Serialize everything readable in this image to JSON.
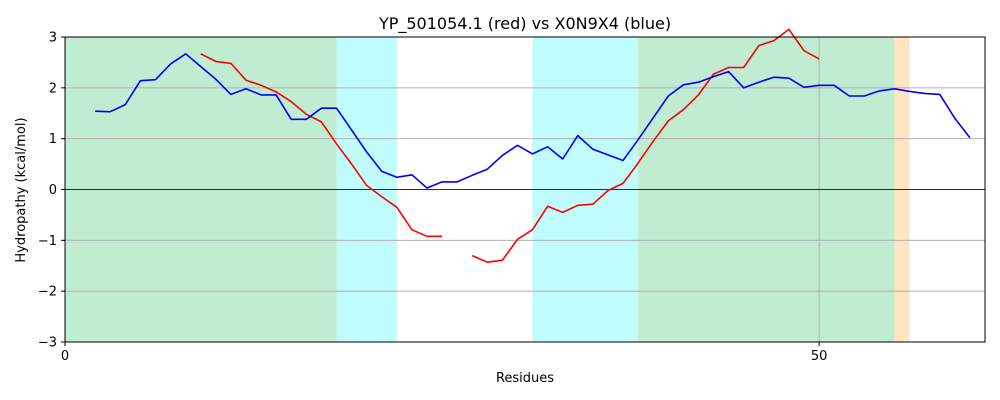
{
  "chart_data": {
    "type": "line",
    "title": "YP_501054.1 (red) vs X0N9X4 (blue)",
    "xlabel": "Residues",
    "ylabel": "Hydropathy (kcal/mol)",
    "xlim": [
      0,
      61
    ],
    "ylim": [
      -3,
      3
    ],
    "xticks": [
      0,
      50
    ],
    "yticks": [
      -3,
      -2,
      -1,
      0,
      1,
      2,
      3
    ],
    "grid": true,
    "legend": "none",
    "regions": [
      {
        "x0": 0,
        "x1": 18,
        "color": "#c0ecd2"
      },
      {
        "x0": 18,
        "x1": 22,
        "color": "#c0fcfc"
      },
      {
        "x0": 31,
        "x1": 38,
        "color": "#c0fcfc"
      },
      {
        "x0": 38,
        "x1": 55,
        "color": "#c0ecd2"
      },
      {
        "x0": 55,
        "x1": 56,
        "color": "#ffe6c0"
      }
    ],
    "series": [
      {
        "color": "#ff0000",
        "segments": [
          [
            [
              9,
              2.67
            ],
            [
              10,
              2.52
            ],
            [
              11,
              2.48
            ],
            [
              12,
              2.15
            ],
            [
              13,
              2.05
            ],
            [
              14,
              1.92
            ],
            [
              15,
              1.73
            ],
            [
              16,
              1.48
            ],
            [
              17,
              1.33
            ],
            [
              18,
              0.9
            ],
            [
              19,
              0.5
            ],
            [
              20,
              0.08
            ],
            [
              21,
              -0.14
            ],
            [
              22,
              -0.35
            ],
            [
              23,
              -0.79
            ],
            [
              24,
              -0.92
            ],
            [
              25,
              -0.92
            ]
          ],
          [
            [
              27,
              -1.3
            ],
            [
              28,
              -1.43
            ],
            [
              29,
              -1.39
            ],
            [
              30,
              -0.98
            ],
            [
              31,
              -0.79
            ],
            [
              32,
              -0.33
            ],
            [
              33,
              -0.45
            ],
            [
              34,
              -0.31
            ],
            [
              35,
              -0.29
            ],
            [
              36,
              -0.02
            ],
            [
              37,
              0.12
            ],
            [
              38,
              0.52
            ],
            [
              39,
              0.95
            ],
            [
              40,
              1.35
            ],
            [
              41,
              1.57
            ],
            [
              42,
              1.86
            ],
            [
              43,
              2.27
            ],
            [
              44,
              2.4
            ],
            [
              45,
              2.4
            ],
            [
              46,
              2.83
            ],
            [
              47,
              2.93
            ],
            [
              48,
              3.15
            ],
            [
              49,
              2.73
            ],
            [
              50,
              2.57
            ]
          ]
        ]
      },
      {
        "color": "#0000ff",
        "segments": [
          [
            [
              2,
              1.54
            ],
            [
              3,
              1.53
            ],
            [
              4,
              1.67
            ],
            [
              5,
              2.14
            ],
            [
              6,
              2.16
            ],
            [
              7,
              2.47
            ],
            [
              8,
              2.67
            ],
            [
              9,
              2.42
            ],
            [
              10,
              2.17
            ],
            [
              11,
              1.87
            ],
            [
              12,
              1.98
            ],
            [
              13,
              1.86
            ],
            [
              14,
              1.86
            ],
            [
              15,
              1.38
            ],
            [
              16,
              1.38
            ],
            [
              17,
              1.6
            ],
            [
              18,
              1.6
            ],
            [
              19,
              1.17
            ],
            [
              20,
              0.74
            ],
            [
              21,
              0.36
            ],
            [
              22,
              0.24
            ],
            [
              23,
              0.29
            ],
            [
              24,
              0.03
            ],
            [
              25,
              0.15
            ],
            [
              26,
              0.15
            ],
            [
              27,
              0.28
            ],
            [
              28,
              0.4
            ],
            [
              29,
              0.67
            ],
            [
              30,
              0.87
            ],
            [
              31,
              0.7
            ],
            [
              32,
              0.84
            ],
            [
              33,
              0.6
            ],
            [
              34,
              1.06
            ],
            [
              35,
              0.79
            ],
            [
              36,
              0.68
            ],
            [
              37,
              0.57
            ],
            [
              38,
              0.98
            ],
            [
              39,
              1.41
            ],
            [
              40,
              1.84
            ],
            [
              41,
              2.06
            ],
            [
              42,
              2.11
            ],
            [
              43,
              2.22
            ],
            [
              44,
              2.32
            ],
            [
              45,
              2.0
            ],
            [
              46,
              2.11
            ],
            [
              47,
              2.21
            ],
            [
              48,
              2.19
            ],
            [
              49,
              2.01
            ],
            [
              50,
              2.05
            ],
            [
              51,
              2.05
            ],
            [
              52,
              1.84
            ],
            [
              53,
              1.84
            ],
            [
              54,
              1.94
            ],
            [
              55,
              1.98
            ],
            [
              56,
              1.93
            ],
            [
              57,
              1.89
            ],
            [
              58,
              1.87
            ],
            [
              59,
              1.4
            ],
            [
              60,
              1.02
            ]
          ]
        ]
      }
    ]
  }
}
